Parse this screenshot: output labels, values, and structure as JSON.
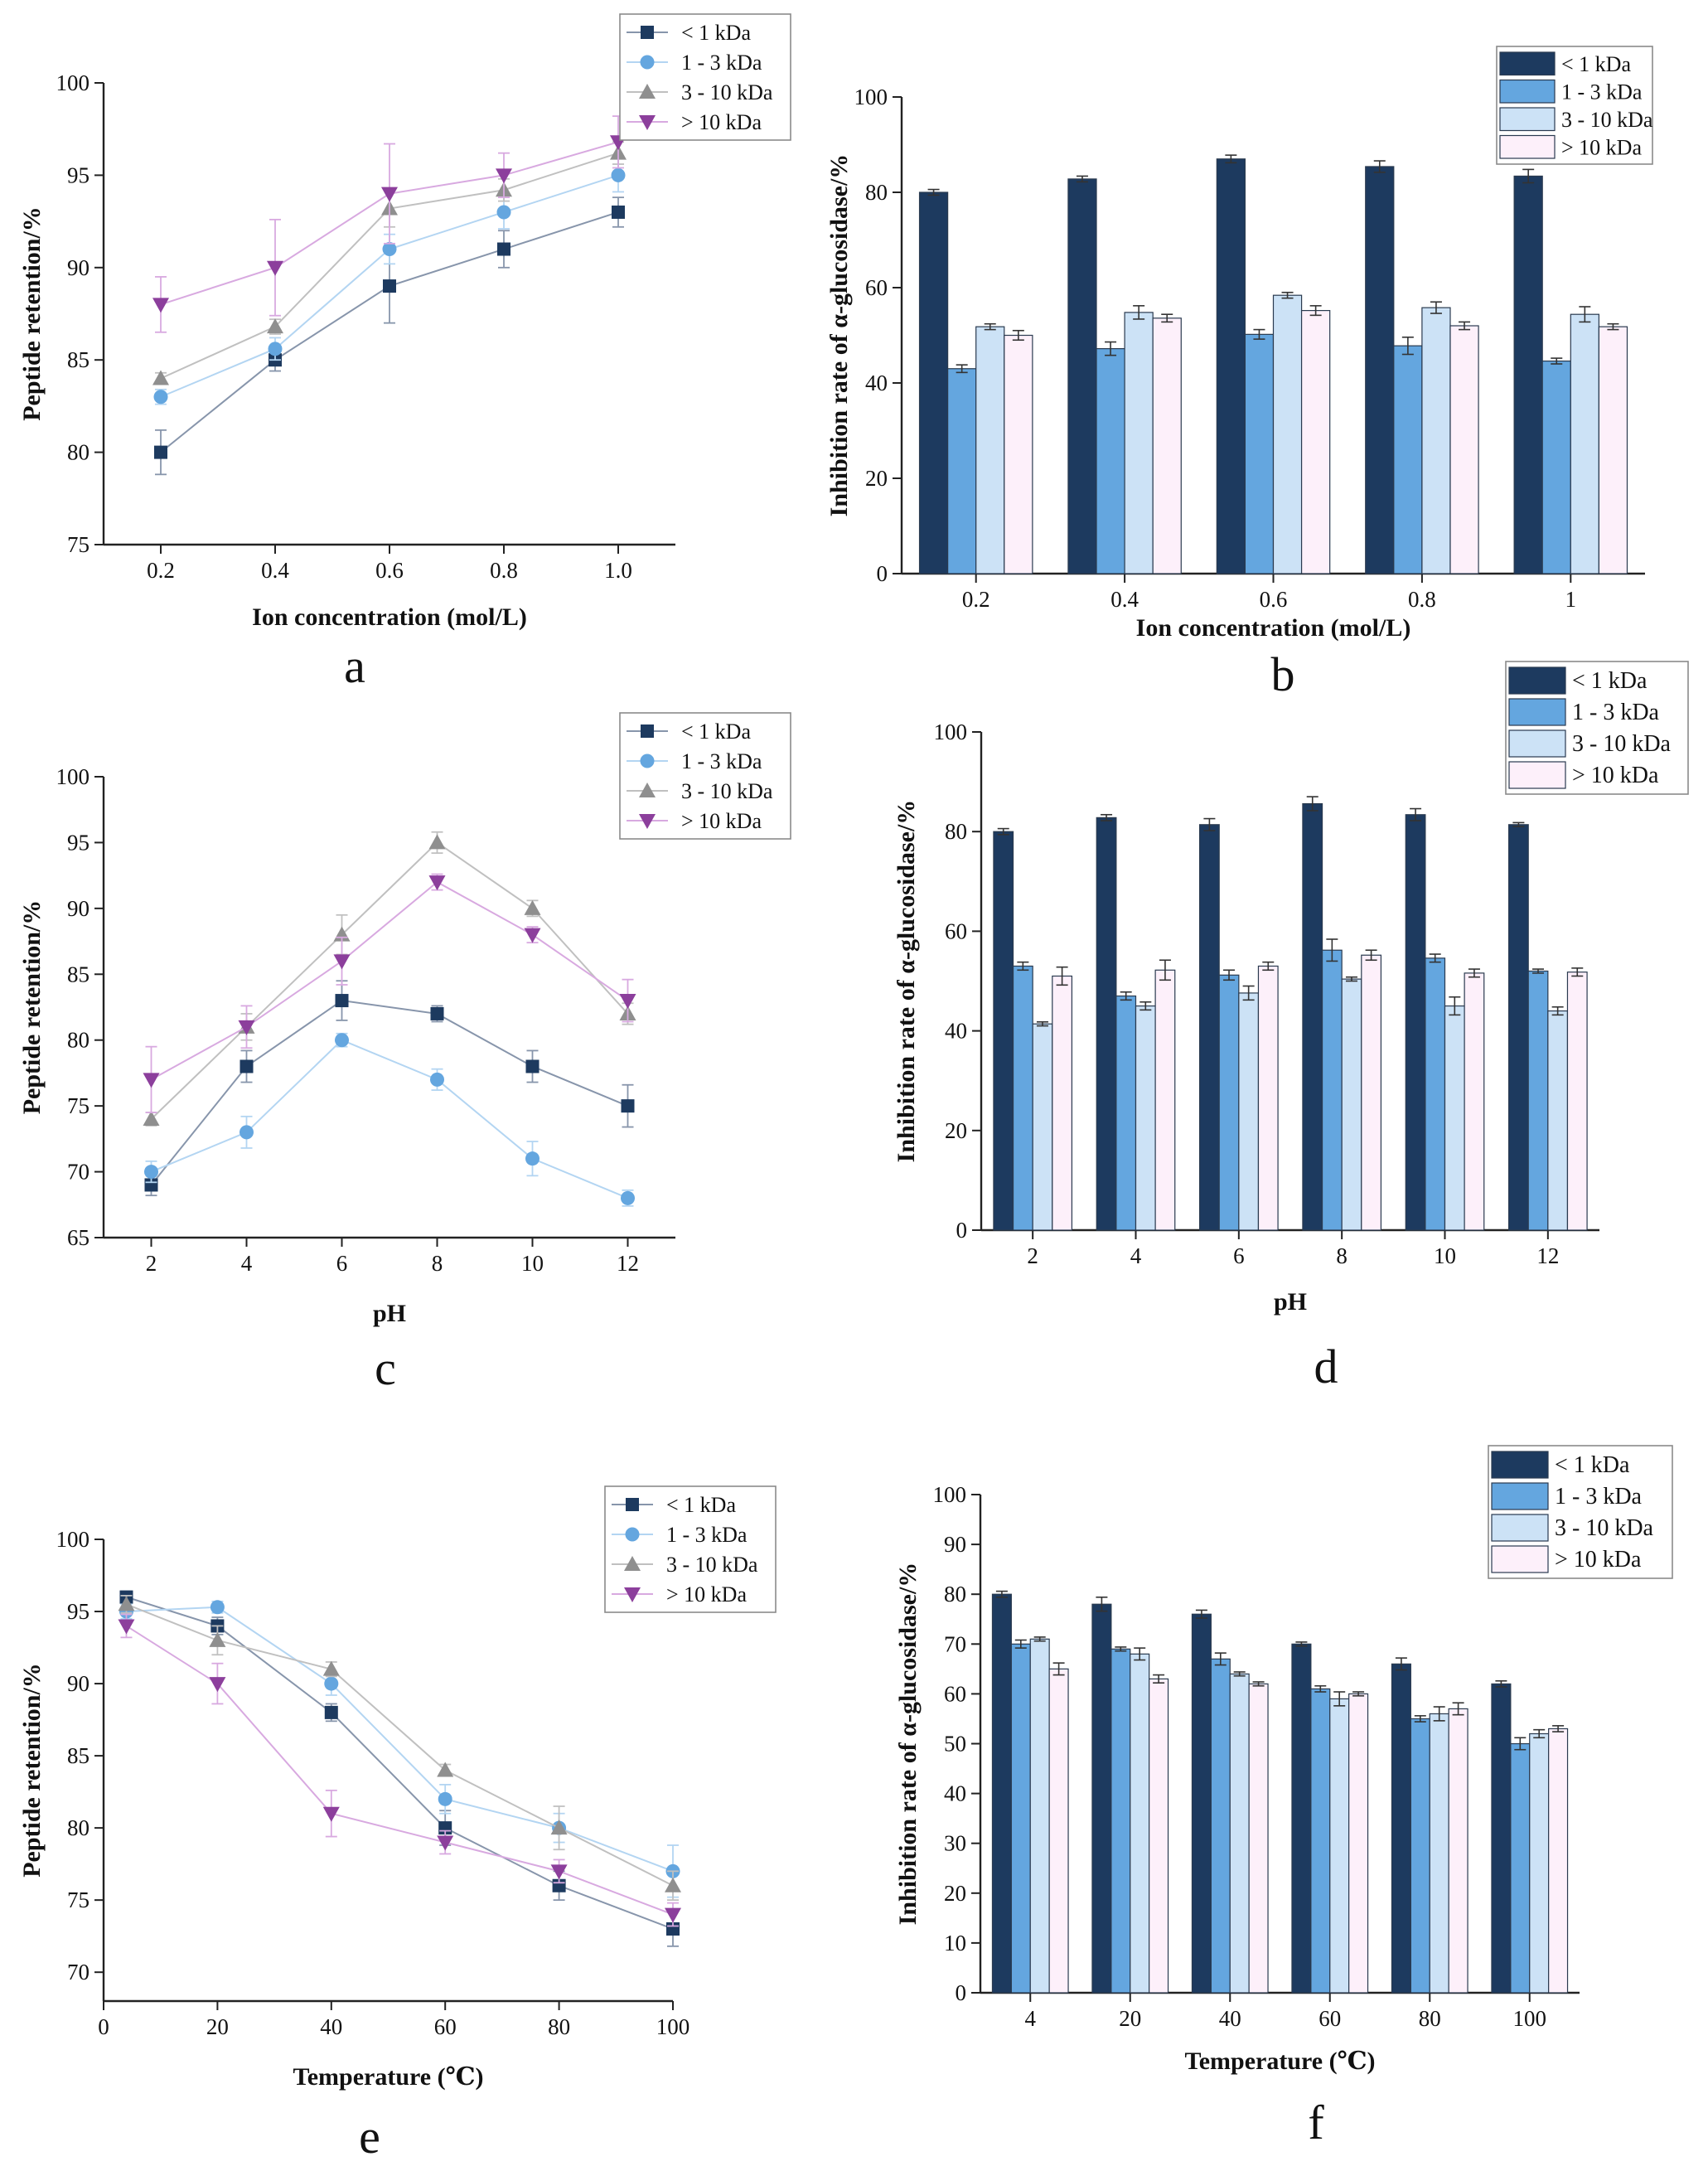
{
  "series_colors": [
    "#1d3a5f",
    "#64a6df",
    "#cce2f6",
    "#fdf0fa"
  ],
  "line_colors": [
    "#1d3a5f",
    "#64a6df",
    "#8f8f8f",
    "#8c3f9c"
  ],
  "line_light": [
    "#8795ab",
    "#b3d5f2",
    "#c0c0c0",
    "#d8a9e0"
  ],
  "marker_shapes": [
    "square",
    "circle",
    "triangle-up",
    "triangle-down"
  ],
  "chart_data": [
    {
      "panel": "a",
      "type": "line",
      "xlabel": "Ion concentration (mol/L)",
      "ylabel": "Peptide retention/%",
      "x": [
        0.2,
        0.4,
        0.6,
        0.8,
        1.0
      ],
      "xticks": [
        "0.2",
        "0.4",
        "0.6",
        "0.8",
        "1.0"
      ],
      "xlim": [
        0.1,
        1.1
      ],
      "ylim": [
        75,
        100
      ],
      "yticks": [
        75,
        80,
        85,
        90,
        95,
        100
      ],
      "legend_position": "top-right",
      "series": [
        {
          "name": "< 1 kDa",
          "values": [
            80,
            85,
            89,
            91,
            93
          ],
          "errors": [
            1.2,
            0.6,
            2.0,
            1.0,
            0.8
          ]
        },
        {
          "name": "1 - 3 kDa",
          "values": [
            83,
            85.6,
            91,
            93,
            95
          ],
          "errors": [
            0.4,
            0.6,
            0.8,
            0.9,
            0.9
          ]
        },
        {
          "name": "3 - 10 kDa",
          "values": [
            84,
            86.8,
            93.2,
            94.2,
            96.2
          ],
          "errors": [
            0.3,
            0.4,
            1.0,
            0.6,
            0.6
          ]
        },
        {
          "name": "> 10 kDa",
          "values": [
            88,
            90,
            94,
            95,
            96.8
          ],
          "errors": [
            1.5,
            2.6,
            2.7,
            1.2,
            1.4
          ]
        }
      ]
    },
    {
      "panel": "b",
      "type": "bar",
      "xlabel": "Ion concentration (mol/L)",
      "ylabel": "Inhibition rate of α-glucosidase/%",
      "categories": [
        "0.2",
        "0.4",
        "0.6",
        "0.8",
        "1"
      ],
      "ylim": [
        0,
        100
      ],
      "yticks": [
        0,
        20,
        40,
        60,
        80,
        100
      ],
      "legend_position": "top-right",
      "series": [
        {
          "name": "< 1 kDa",
          "values": [
            80,
            82.8,
            87,
            85.4,
            83.4
          ],
          "errors": [
            0.6,
            0.6,
            0.8,
            1.2,
            1.4
          ]
        },
        {
          "name": "1 - 3 kDa",
          "values": [
            43,
            47.2,
            50.2,
            47.8,
            44.6
          ],
          "errors": [
            0.8,
            1.4,
            1.0,
            1.8,
            0.6
          ]
        },
        {
          "name": "3 - 10 kDa",
          "values": [
            51.8,
            54.8,
            58.4,
            55.8,
            54.4
          ],
          "errors": [
            0.6,
            1.4,
            0.6,
            1.2,
            1.6
          ]
        },
        {
          "name": "> 10 kDa",
          "values": [
            50,
            53.6,
            55.2,
            52,
            51.8
          ],
          "errors": [
            1.0,
            0.8,
            1.0,
            0.8,
            0.6
          ]
        }
      ]
    },
    {
      "panel": "c",
      "type": "line",
      "xlabel": "pH",
      "ylabel": "Peptide retention/%",
      "x": [
        2,
        4,
        6,
        8,
        10,
        12
      ],
      "xticks": [
        "2",
        "4",
        "6",
        "8",
        "10",
        "12"
      ],
      "xlim": [
        1,
        13
      ],
      "ylim": [
        65,
        100
      ],
      "yticks": [
        65,
        70,
        75,
        80,
        85,
        90,
        95,
        100
      ],
      "legend_position": "top-right",
      "series": [
        {
          "name": "< 1 kDa",
          "values": [
            69,
            78,
            83,
            82,
            78,
            75
          ],
          "errors": [
            0.8,
            1.2,
            1.5,
            0.6,
            1.2,
            1.6
          ]
        },
        {
          "name": "1 - 3 kDa",
          "values": [
            70,
            73,
            80,
            77,
            71,
            68
          ],
          "errors": [
            0.8,
            1.2,
            0.5,
            0.8,
            1.3,
            0.6
          ]
        },
        {
          "name": "3 - 10 kDa",
          "values": [
            74,
            81,
            88,
            95,
            90,
            82
          ],
          "errors": [
            0.5,
            1.0,
            1.5,
            0.8,
            0.6,
            0.8
          ]
        },
        {
          "name": "> 10 kDa",
          "values": [
            77,
            81,
            86,
            92,
            88,
            83
          ],
          "errors": [
            2.5,
            1.6,
            1.8,
            0.6,
            0.6,
            1.6
          ]
        }
      ]
    },
    {
      "panel": "d",
      "type": "bar",
      "xlabel": "pH",
      "ylabel": "Inhibition rate of α-glucosidase/%",
      "categories": [
        "2",
        "4",
        "6",
        "8",
        "10",
        "12"
      ],
      "ylim": [
        0,
        100
      ],
      "yticks": [
        0,
        20,
        40,
        60,
        80,
        100
      ],
      "legend_position": "top-right",
      "series": [
        {
          "name": "< 1 kDa",
          "values": [
            80,
            82.8,
            81.4,
            85.6,
            83.4,
            81.4
          ],
          "errors": [
            0.6,
            0.6,
            1.2,
            1.4,
            1.2,
            0.4
          ]
        },
        {
          "name": "1 - 3 kDa",
          "values": [
            53,
            47,
            51.2,
            56.2,
            54.6,
            52
          ],
          "errors": [
            0.8,
            0.8,
            1.0,
            2.2,
            0.8,
            0.4
          ]
        },
        {
          "name": "3 - 10 kDa",
          "values": [
            41.4,
            45,
            47.6,
            50.4,
            45,
            44
          ],
          "errors": [
            0.4,
            0.8,
            1.4,
            0.4,
            1.8,
            0.8
          ]
        },
        {
          "name": "> 10 kDa",
          "values": [
            51,
            52.2,
            53,
            55.2,
            51.6,
            51.8
          ],
          "errors": [
            1.8,
            2.0,
            0.8,
            1.0,
            0.8,
            0.8
          ]
        }
      ]
    },
    {
      "panel": "e",
      "type": "line",
      "xlabel": "Temperature (℃)",
      "ylabel": "Peptide retention/%",
      "x": [
        4,
        20,
        40,
        60,
        80,
        100
      ],
      "xticks": [
        "0",
        "20",
        "40",
        "60",
        "80",
        "100"
      ],
      "xtick_values": [
        0,
        20,
        40,
        60,
        80,
        100
      ],
      "xlim": [
        0,
        100
      ],
      "ylim": [
        68,
        100
      ],
      "yticks": [
        70,
        75,
        80,
        85,
        90,
        95,
        100
      ],
      "legend_position": "top-right",
      "series": [
        {
          "name": "< 1 kDa",
          "values": [
            96,
            94,
            88,
            80,
            76,
            73
          ],
          "errors": [
            0.4,
            0.6,
            0.6,
            1.2,
            1.0,
            1.2
          ]
        },
        {
          "name": "1 - 3 kDa",
          "values": [
            95,
            95.3,
            90,
            82,
            80,
            77
          ],
          "errors": [
            0.5,
            0.4,
            0.8,
            1.0,
            1.0,
            1.8
          ]
        },
        {
          "name": "3 - 10 kDa",
          "values": [
            95.5,
            93,
            91,
            84,
            80,
            76
          ],
          "errors": [
            0.6,
            1.0,
            0.5,
            0.4,
            1.5,
            1.0
          ]
        },
        {
          "name": "> 10 kDa",
          "values": [
            94,
            90,
            81,
            79,
            77,
            74
          ],
          "errors": [
            0.8,
            1.4,
            1.6,
            0.8,
            0.8,
            0.8
          ]
        }
      ]
    },
    {
      "panel": "f",
      "type": "bar",
      "xlabel": "Temperature (℃)",
      "ylabel": "Inhibition rate of α-glucosidase/%",
      "categories": [
        "4",
        "20",
        "40",
        "60",
        "80",
        "100"
      ],
      "ylim": [
        0,
        100
      ],
      "yticks": [
        0,
        10,
        20,
        30,
        40,
        50,
        60,
        70,
        80,
        90,
        100
      ],
      "legend_position": "top-right",
      "series": [
        {
          "name": "< 1 kDa",
          "values": [
            80,
            78,
            76,
            70,
            66,
            62
          ],
          "errors": [
            0.6,
            1.4,
            0.8,
            0.4,
            1.2,
            0.6
          ]
        },
        {
          "name": "1 - 3 kDa",
          "values": [
            70,
            69,
            67,
            61,
            55,
            50
          ],
          "errors": [
            0.8,
            0.4,
            1.2,
            0.6,
            0.6,
            1.2
          ]
        },
        {
          "name": "3 - 10 kDa",
          "values": [
            71,
            68,
            64,
            59,
            56,
            52
          ],
          "errors": [
            0.4,
            1.2,
            0.4,
            1.4,
            1.4,
            0.8
          ]
        },
        {
          "name": "> 10 kDa",
          "values": [
            65,
            63,
            62,
            60,
            57,
            53
          ],
          "errors": [
            1.2,
            0.8,
            0.4,
            0.4,
            1.2,
            0.6
          ]
        }
      ]
    }
  ]
}
